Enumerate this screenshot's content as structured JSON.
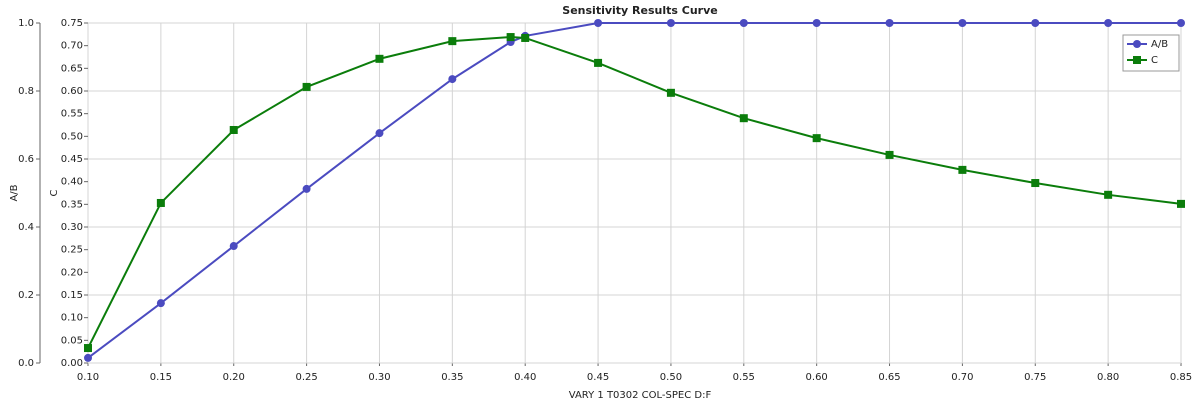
{
  "chart_data": {
    "type": "line",
    "title": "Sensitivity Results Curve",
    "xlabel": "VARY   1 T0302 COL-SPEC D:F",
    "ylabel": "A/B",
    "y2label": "C",
    "x": [
      0.1,
      0.15,
      0.2,
      0.25,
      0.3,
      0.35,
      0.39,
      0.4,
      0.45,
      0.5,
      0.55,
      0.6,
      0.65,
      0.7,
      0.75,
      0.8,
      0.85
    ],
    "xlim": [
      0.1,
      0.85
    ],
    "xticks": [
      {
        "value": 0.1,
        "label": "0.10"
      },
      {
        "value": 0.15,
        "label": "0.15"
      },
      {
        "value": 0.2,
        "label": "0.20"
      },
      {
        "value": 0.25,
        "label": "0.25"
      },
      {
        "value": 0.3,
        "label": "0.30"
      },
      {
        "value": 0.35,
        "label": "0.35"
      },
      {
        "value": 0.4,
        "label": "0.40"
      },
      {
        "value": 0.45,
        "label": "0.45"
      },
      {
        "value": 0.5,
        "label": "0.50"
      },
      {
        "value": 0.55,
        "label": "0.55"
      },
      {
        "value": 0.6,
        "label": "0.60"
      },
      {
        "value": 0.65,
        "label": "0.65"
      },
      {
        "value": 0.7,
        "label": "0.70"
      },
      {
        "value": 0.75,
        "label": "0.75"
      },
      {
        "value": 0.8,
        "label": "0.80"
      },
      {
        "value": 0.85,
        "label": "0.85"
      }
    ],
    "ylim": [
      0,
      1
    ],
    "yticks": [
      {
        "value": 0,
        "label": "0.0"
      },
      0.2,
      0.4,
      0.6,
      0.8,
      {
        "value": 1,
        "label": "1.0"
      }
    ],
    "y2lim": [
      0,
      0.75
    ],
    "y2ticks": [
      {
        "value": 0,
        "label": "0.00"
      },
      0.05,
      {
        "value": 0.1,
        "label": "0.10"
      },
      0.15,
      {
        "value": 0.2,
        "label": "0.20"
      },
      0.25,
      {
        "value": 0.3,
        "label": "0.30"
      },
      0.35,
      {
        "value": 0.4,
        "label": "0.40"
      },
      0.45,
      {
        "value": 0.5,
        "label": "0.50"
      },
      0.55,
      {
        "value": 0.6,
        "label": "0.60"
      },
      0.65,
      {
        "value": 0.7,
        "label": "0.70"
      },
      0.75
    ],
    "grid": true,
    "legend": "upper right",
    "series": [
      {
        "name": "A/B",
        "color": "#4b4bc0",
        "marker": "circle",
        "values": [
          0.015,
          0.176,
          0.344,
          0.512,
          0.676,
          0.835,
          0.944,
          0.962,
          1.0,
          1.0,
          1.0,
          1.0,
          1.0,
          1.0,
          1.0,
          1.0,
          1.0
        ]
      },
      {
        "name": "C",
        "color": "#0b7d0b",
        "marker": "square",
        "axis": "y2",
        "values": [
          0.033,
          0.353,
          0.514,
          0.609,
          0.671,
          0.71,
          0.719,
          0.717,
          0.662,
          0.596,
          0.54,
          0.496,
          0.459,
          0.426,
          0.397,
          0.371,
          0.351
        ]
      }
    ]
  }
}
